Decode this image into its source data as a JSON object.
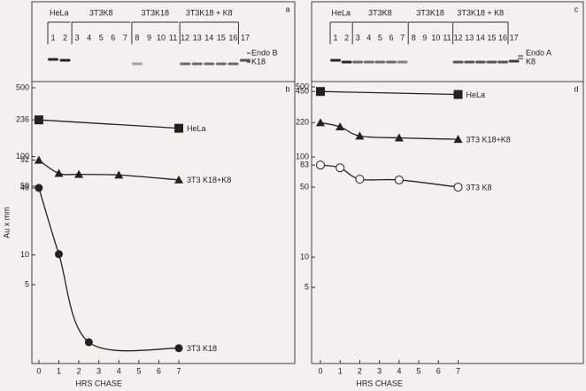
{
  "gels": [
    {
      "panel": "a",
      "groups": [
        "HeLa",
        "3T3K8",
        "3T3K18",
        "3T3K18 + K8"
      ],
      "lanes": [
        "1",
        "2",
        "3",
        "4",
        "5",
        "6",
        "7",
        "8",
        "9",
        "10",
        "11",
        "12",
        "13",
        "14",
        "15",
        "16",
        "17"
      ],
      "bands": [
        "Endo B",
        "K18"
      ]
    },
    {
      "panel": "c",
      "groups": [
        "HeLa",
        "3T3K8",
        "3T3K18",
        "3T3K18 + K8"
      ],
      "lanes": [
        "1",
        "2",
        "3",
        "4",
        "5",
        "6",
        "7",
        "8",
        "9",
        "10",
        "11",
        "12",
        "13",
        "14",
        "15",
        "16",
        "17"
      ],
      "bands": [
        "Endo A",
        "K8"
      ]
    }
  ],
  "chart_data": [
    {
      "type": "line",
      "panel": "b",
      "ylabel": "Au x mm",
      "xlabel": "HRS CHASE",
      "log_y": true,
      "xlim": [
        -0.35,
        12.8
      ],
      "ylim": [
        0.79,
        578
      ],
      "xticks": [
        0,
        1,
        2,
        3,
        4,
        5,
        6,
        7
      ],
      "yticks": [
        5,
        10,
        48,
        50,
        92,
        100,
        236,
        500
      ],
      "series": [
        {
          "name": "HeLa",
          "marker": "square",
          "color": "#222222",
          "x": [
            0,
            7
          ],
          "values": [
            236,
            194
          ]
        },
        {
          "name": "3T3 K18+K8",
          "marker": "triangle",
          "color": "#222222",
          "x": [
            0,
            1,
            2,
            4,
            7
          ],
          "values": [
            92,
            67.5,
            66,
            65,
            58
          ]
        },
        {
          "name": "3T3 K18",
          "marker": "circle",
          "color": "#222222",
          "x": [
            0,
            1,
            2.5,
            7
          ],
          "values": [
            48,
            10.2,
            1.3,
            1.13
          ]
        }
      ]
    },
    {
      "type": "line",
      "panel": "d",
      "xlabel": "HRS CHASE",
      "log_y": true,
      "xlim": [
        -0.45,
        13.37
      ],
      "ylim": [
        0.87,
        565
      ],
      "xticks": [
        0,
        1,
        2,
        3,
        4,
        5,
        6,
        7
      ],
      "yticks": [
        5,
        10,
        50,
        83,
        100,
        220,
        450,
        500
      ],
      "series": [
        {
          "name": "HeLa",
          "marker": "square",
          "color": "#222222",
          "x": [
            0,
            7
          ],
          "values": [
            450,
            420
          ]
        },
        {
          "name": "3T3 K18+K8",
          "marker": "triangle",
          "color": "#222222",
          "x": [
            0,
            1,
            2,
            4,
            7
          ],
          "values": [
            220,
            200,
            162,
            155,
            150
          ]
        },
        {
          "name": "3T3 K8",
          "marker": "open_circle",
          "color": "#222222",
          "x": [
            0,
            1,
            2,
            4,
            7
          ],
          "values": [
            83,
            78,
            60,
            59,
            50
          ]
        }
      ]
    }
  ]
}
